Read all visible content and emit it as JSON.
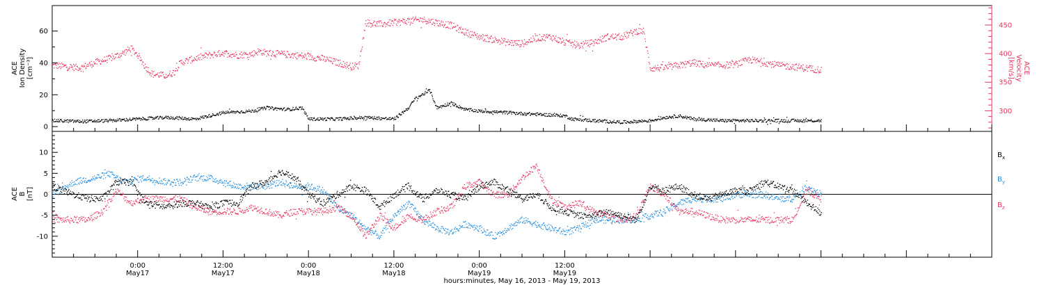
{
  "chart_data": [
    {
      "type": "scatter",
      "panel": "top",
      "ylabel_left": [
        "ACE",
        "Ion Density",
        "[cm⁻³]"
      ],
      "ylabel_right": [
        "ACE",
        "Velocity",
        "[km/s]"
      ],
      "left_ylim": [
        -3,
        76
      ],
      "left_ticks": [
        0,
        20,
        40,
        60
      ],
      "right_ylim": [
        264,
        484
      ],
      "right_ticks": [
        300,
        350,
        400,
        450
      ],
      "series": [
        {
          "name": "",
          "axis": "left",
          "color": "#000000",
          "points": [
            [
              0,
              4
            ],
            [
              4,
              3.5
            ],
            [
              8,
              4
            ],
            [
              12,
              5
            ],
            [
              16,
              6
            ],
            [
              20,
              5
            ],
            [
              22,
              7
            ],
            [
              24,
              9
            ],
            [
              28,
              10
            ],
            [
              30,
              12
            ],
            [
              33,
              11
            ],
            [
              35,
              12
            ],
            [
              36,
              5
            ],
            [
              40,
              5
            ],
            [
              44,
              6
            ],
            [
              48,
              5
            ],
            [
              50,
              12
            ],
            [
              51,
              18
            ],
            [
              53,
              23
            ],
            [
              54,
              12
            ],
            [
              56,
              15
            ],
            [
              58,
              11
            ],
            [
              60,
              10
            ],
            [
              64,
              9
            ],
            [
              68,
              8
            ],
            [
              72,
              7
            ],
            [
              73,
              5
            ],
            [
              76,
              4
            ],
            [
              80,
              3
            ],
            [
              84,
              4
            ],
            [
              86,
              6
            ],
            [
              88,
              7
            ],
            [
              90,
              5
            ],
            [
              94,
              4
            ],
            [
              96,
              4
            ],
            [
              100,
              4
            ],
            [
              104,
              4
            ],
            [
              108,
              4
            ]
          ]
        },
        {
          "name": "",
          "axis": "right",
          "color": "#e8335d",
          "points": [
            [
              0,
              380
            ],
            [
              2,
              378
            ],
            [
              4,
              376
            ],
            [
              6,
              385
            ],
            [
              8,
              392
            ],
            [
              10,
              402
            ],
            [
              11,
              410
            ],
            [
              12,
              398
            ],
            [
              13,
              378
            ],
            [
              14,
              365
            ],
            [
              16,
              362
            ],
            [
              17,
              368
            ],
            [
              18,
              385
            ],
            [
              20,
              392
            ],
            [
              22,
              398
            ],
            [
              24,
              402
            ],
            [
              26,
              398
            ],
            [
              28,
              400
            ],
            [
              29,
              405
            ],
            [
              30,
              402
            ],
            [
              32,
              400
            ],
            [
              34,
              398
            ],
            [
              36,
              395
            ],
            [
              38,
              392
            ],
            [
              40,
              385
            ],
            [
              42,
              378
            ],
            [
              43,
              380
            ],
            [
              44,
              455
            ],
            [
              46,
              452
            ],
            [
              48,
              455
            ],
            [
              50,
              458
            ],
            [
              52,
              460
            ],
            [
              54,
              455
            ],
            [
              56,
              450
            ],
            [
              58,
              438
            ],
            [
              60,
              430
            ],
            [
              62,
              425
            ],
            [
              64,
              420
            ],
            [
              66,
              418
            ],
            [
              68,
              428
            ],
            [
              70,
              430
            ],
            [
              72,
              420
            ],
            [
              74,
              415
            ],
            [
              76,
              420
            ],
            [
              78,
              430
            ],
            [
              80,
              430
            ],
            [
              82,
              440
            ],
            [
              83,
              440
            ],
            [
              84,
              375
            ],
            [
              86,
              376
            ],
            [
              88,
              380
            ],
            [
              90,
              385
            ],
            [
              92,
              380
            ],
            [
              94,
              380
            ],
            [
              96,
              382
            ],
            [
              98,
              390
            ],
            [
              100,
              385
            ],
            [
              102,
              380
            ],
            [
              104,
              378
            ],
            [
              106,
              375
            ],
            [
              108,
              372
            ]
          ]
        }
      ]
    },
    {
      "type": "scatter",
      "panel": "bottom",
      "ylabel": [
        "ACE",
        "B",
        "[nT]"
      ],
      "ylim": [
        -15,
        15
      ],
      "ticks": [
        -10,
        -5,
        0,
        5,
        10
      ],
      "legend": [
        {
          "label": "B",
          "sub": "x",
          "color": "#000000"
        },
        {
          "label": "B",
          "sub": "y",
          "color": "#1f8de0"
        },
        {
          "label": "B",
          "sub": "z",
          "color": "#e8335d"
        }
      ],
      "series": [
        {
          "name": "Bx",
          "color": "#000000",
          "points": [
            [
              0,
              2
            ],
            [
              3,
              0
            ],
            [
              5,
              -1
            ],
            [
              7,
              -1
            ],
            [
              9,
              3
            ],
            [
              11,
              3
            ],
            [
              13,
              -2
            ],
            [
              16,
              -3
            ],
            [
              18,
              -2
            ],
            [
              20,
              -2
            ],
            [
              22,
              -3
            ],
            [
              24,
              -2
            ],
            [
              26,
              -2
            ],
            [
              28,
              2
            ],
            [
              30,
              3
            ],
            [
              32,
              5.5
            ],
            [
              34,
              4
            ],
            [
              36,
              0
            ],
            [
              38,
              -2
            ],
            [
              40,
              0
            ],
            [
              42,
              2
            ],
            [
              44,
              1
            ],
            [
              46,
              -3
            ],
            [
              48,
              0
            ],
            [
              50,
              2
            ],
            [
              52,
              -1
            ],
            [
              54,
              1
            ],
            [
              56,
              0
            ],
            [
              58,
              -1
            ],
            [
              60,
              2
            ],
            [
              62,
              3
            ],
            [
              64,
              1
            ],
            [
              66,
              -1
            ],
            [
              68,
              0
            ],
            [
              70,
              -3
            ],
            [
              72,
              -4
            ],
            [
              74,
              -5
            ],
            [
              76,
              -5
            ],
            [
              78,
              -4
            ],
            [
              80,
              -5
            ],
            [
              82,
              -6
            ],
            [
              84,
              2
            ],
            [
              86,
              1
            ],
            [
              88,
              2
            ],
            [
              90,
              0
            ],
            [
              92,
              -1
            ],
            [
              94,
              0
            ],
            [
              96,
              1
            ],
            [
              98,
              1
            ],
            [
              100,
              3
            ],
            [
              102,
              2
            ],
            [
              104,
              1
            ],
            [
              106,
              -2
            ],
            [
              108,
              -4.5
            ]
          ]
        },
        {
          "name": "By",
          "color": "#1f8de0",
          "points": [
            [
              0,
              0
            ],
            [
              3,
              3
            ],
            [
              6,
              4
            ],
            [
              8,
              5
            ],
            [
              10,
              3
            ],
            [
              13,
              4
            ],
            [
              16,
              3
            ],
            [
              18,
              3
            ],
            [
              20,
              4
            ],
            [
              22,
              4
            ],
            [
              24,
              3
            ],
            [
              26,
              2
            ],
            [
              28,
              2
            ],
            [
              30,
              2
            ],
            [
              32,
              3
            ],
            [
              34,
              2
            ],
            [
              36,
              2
            ],
            [
              38,
              1
            ],
            [
              40,
              -3
            ],
            [
              42,
              -5
            ],
            [
              44,
              -8
            ],
            [
              46,
              -10
            ],
            [
              48,
              -5
            ],
            [
              50,
              -2
            ],
            [
              52,
              -6
            ],
            [
              54,
              -8
            ],
            [
              56,
              -9
            ],
            [
              58,
              -7
            ],
            [
              60,
              -8
            ],
            [
              62,
              -10
            ],
            [
              64,
              -8
            ],
            [
              66,
              -6
            ],
            [
              68,
              -7
            ],
            [
              70,
              -8
            ],
            [
              72,
              -9
            ],
            [
              74,
              -8
            ],
            [
              76,
              -6
            ],
            [
              78,
              -6
            ],
            [
              80,
              -6
            ],
            [
              82,
              -6
            ],
            [
              84,
              -5
            ],
            [
              86,
              -4
            ],
            [
              88,
              -2
            ],
            [
              90,
              -1
            ],
            [
              92,
              -1
            ],
            [
              94,
              -1
            ],
            [
              96,
              0
            ],
            [
              98,
              0
            ],
            [
              100,
              0
            ],
            [
              102,
              -1
            ],
            [
              104,
              -1
            ],
            [
              106,
              2
            ],
            [
              108,
              0
            ]
          ]
        },
        {
          "name": "Bz",
          "color": "#e8335d",
          "points": [
            [
              0,
              -6
            ],
            [
              3,
              -6
            ],
            [
              5,
              -6
            ],
            [
              7,
              -4
            ],
            [
              9,
              1
            ],
            [
              11,
              -2
            ],
            [
              13,
              -1
            ],
            [
              16,
              -1
            ],
            [
              18,
              -1
            ],
            [
              20,
              -3
            ],
            [
              22,
              -4
            ],
            [
              24,
              -4
            ],
            [
              26,
              -4
            ],
            [
              28,
              -3
            ],
            [
              30,
              -4
            ],
            [
              32,
              -5
            ],
            [
              34,
              -4
            ],
            [
              36,
              -4
            ],
            [
              38,
              -4
            ],
            [
              40,
              -3
            ],
            [
              42,
              -5
            ],
            [
              44,
              -10
            ],
            [
              46,
              -5
            ],
            [
              48,
              -8
            ],
            [
              50,
              -5
            ],
            [
              52,
              -6
            ],
            [
              54,
              -4
            ],
            [
              56,
              -3
            ],
            [
              58,
              2
            ],
            [
              60,
              3
            ],
            [
              62,
              0
            ],
            [
              64,
              0
            ],
            [
              66,
              4
            ],
            [
              68,
              7
            ],
            [
              70,
              -1
            ],
            [
              72,
              -3
            ],
            [
              74,
              -2
            ],
            [
              76,
              -4
            ],
            [
              78,
              -5
            ],
            [
              80,
              -6
            ],
            [
              82,
              -5
            ],
            [
              84,
              2
            ],
            [
              86,
              0
            ],
            [
              88,
              -4
            ],
            [
              90,
              -4
            ],
            [
              92,
              -5
            ],
            [
              94,
              -6
            ],
            [
              96,
              -6
            ],
            [
              98,
              -6
            ],
            [
              100,
              -6
            ],
            [
              102,
              -6
            ],
            [
              104,
              -6
            ],
            [
              106,
              1
            ],
            [
              108,
              -1
            ]
          ]
        }
      ]
    }
  ],
  "x_axis": {
    "hours_range": [
      -12,
      120
    ],
    "ticks": [
      {
        "h": 0,
        "time": "0:00",
        "date": "May17"
      },
      {
        "h": 12,
        "time": "12:00",
        "date": "May17"
      },
      {
        "h": 24,
        "time": "0:00",
        "date": "May18"
      },
      {
        "h": 36,
        "time": "12:00",
        "date": "May18"
      },
      {
        "h": 48,
        "time": "0:00",
        "date": "May19"
      },
      {
        "h": 60,
        "time": "12:00",
        "date": "May19"
      }
    ],
    "data_start_h": -12,
    "title": "hours:minutes, May 16, 2013 - May 19, 2013"
  }
}
